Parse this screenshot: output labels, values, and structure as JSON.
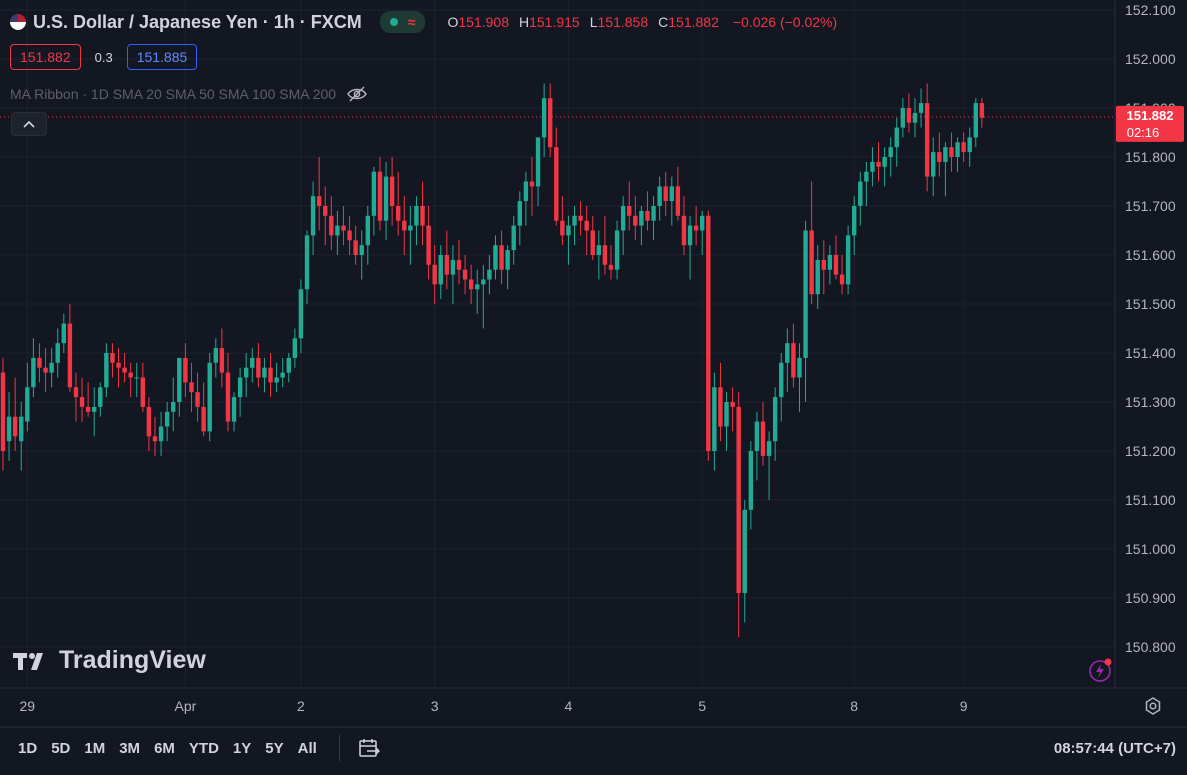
{
  "header": {
    "symbol": "U.S. Dollar / Japanese Yen",
    "separator1": "·",
    "interval": "1h",
    "separator2": "·",
    "exchange": "FXCM",
    "ohlc": {
      "o_label": "O",
      "o_value": "151.908",
      "h_label": "H",
      "h_value": "151.915",
      "l_label": "L",
      "l_value": "151.858",
      "c_label": "C",
      "c_value": "151.882",
      "change": "−0.026 (−0.02%)"
    },
    "bid_price": "151.882",
    "spread": "0.3",
    "ask_price": "151.885",
    "indicator": "MA Ribbon · 1D SMA 20 SMA 50 SMA 100 SMA 200",
    "status_icon": "wave-icon"
  },
  "price_label": {
    "value": "151.882",
    "countdown": "02:16"
  },
  "branding": {
    "name": "TradingView"
  },
  "bottom": {
    "ranges": [
      "1D",
      "5D",
      "1M",
      "3M",
      "6M",
      "YTD",
      "1Y",
      "5Y",
      "All"
    ],
    "clock": "08:57:44 (UTC+7)"
  },
  "colors": {
    "background": "#131722",
    "up": "#22ab94",
    "down": "#f23645",
    "grid": "#1e222d",
    "axis_text": "#b2b5be"
  },
  "chart_data": {
    "type": "candlestick",
    "title": "U.S. Dollar / Japanese Yen · 1h · FXCM",
    "yticks": [
      "152.100",
      "152.000",
      "151.900",
      "151.800",
      "151.700",
      "151.600",
      "151.500",
      "151.400",
      "151.300",
      "151.200",
      "151.100",
      "151.000",
      "150.900",
      "150.800"
    ],
    "ytick_values": [
      152.1,
      152.0,
      151.9,
      151.8,
      151.7,
      151.6,
      151.5,
      151.4,
      151.3,
      151.2,
      151.1,
      151.0,
      150.9,
      150.8
    ],
    "ylim": [
      150.77,
      152.14
    ],
    "xticks": [
      {
        "label": "29",
        "bar": 4
      },
      {
        "label": "Apr",
        "bar": 30
      },
      {
        "label": "2",
        "bar": 49
      },
      {
        "label": "3",
        "bar": 71
      },
      {
        "label": "4",
        "bar": 93
      },
      {
        "label": "5",
        "bar": 115
      },
      {
        "label": "8",
        "bar": 140
      },
      {
        "label": "9",
        "bar": 158
      }
    ],
    "current_price": 151.882,
    "candles": [
      [
        151.36,
        151.39,
        151.16,
        151.2
      ],
      [
        151.22,
        151.32,
        151.18,
        151.27
      ],
      [
        151.27,
        151.35,
        151.2,
        151.23
      ],
      [
        151.22,
        151.3,
        151.16,
        151.27
      ],
      [
        151.26,
        151.38,
        151.24,
        151.33
      ],
      [
        151.33,
        151.43,
        151.31,
        151.39
      ],
      [
        151.39,
        151.42,
        151.34,
        151.37
      ],
      [
        151.37,
        151.41,
        151.32,
        151.36
      ],
      [
        151.36,
        151.41,
        151.33,
        151.38
      ],
      [
        151.38,
        151.45,
        151.35,
        151.42
      ],
      [
        151.42,
        151.48,
        151.4,
        151.46
      ],
      [
        151.46,
        151.5,
        151.32,
        151.33
      ],
      [
        151.33,
        151.36,
        151.26,
        151.31
      ],
      [
        151.31,
        151.35,
        151.26,
        151.29
      ],
      [
        151.29,
        151.34,
        151.27,
        151.28
      ],
      [
        151.28,
        151.33,
        151.23,
        151.29
      ],
      [
        151.29,
        151.34,
        151.27,
        151.33
      ],
      [
        151.33,
        151.42,
        151.31,
        151.4
      ],
      [
        151.4,
        151.42,
        151.35,
        151.38
      ],
      [
        151.38,
        151.41,
        151.33,
        151.37
      ],
      [
        151.37,
        151.4,
        151.34,
        151.36
      ],
      [
        151.36,
        151.38,
        151.31,
        151.35
      ],
      [
        151.35,
        151.38,
        151.31,
        151.35
      ],
      [
        151.35,
        151.38,
        151.28,
        151.29
      ],
      [
        151.29,
        151.31,
        151.2,
        151.23
      ],
      [
        151.23,
        151.27,
        151.19,
        151.22
      ],
      [
        151.22,
        151.28,
        151.19,
        151.25
      ],
      [
        151.25,
        151.3,
        151.22,
        151.28
      ],
      [
        151.28,
        151.35,
        151.24,
        151.3
      ],
      [
        151.3,
        151.39,
        151.27,
        151.39
      ],
      [
        151.39,
        151.42,
        151.31,
        151.34
      ],
      [
        151.34,
        151.38,
        151.28,
        151.32
      ],
      [
        151.32,
        151.36,
        151.26,
        151.29
      ],
      [
        151.29,
        151.34,
        151.23,
        151.24
      ],
      [
        151.24,
        151.4,
        151.22,
        151.38
      ],
      [
        151.38,
        151.43,
        151.35,
        151.41
      ],
      [
        151.41,
        151.45,
        151.33,
        151.36
      ],
      [
        151.36,
        151.4,
        151.24,
        151.26
      ],
      [
        151.26,
        151.32,
        151.24,
        151.31
      ],
      [
        151.31,
        151.37,
        151.27,
        151.35
      ],
      [
        151.35,
        151.4,
        151.31,
        151.37
      ],
      [
        151.37,
        151.41,
        151.34,
        151.39
      ],
      [
        151.39,
        151.42,
        151.33,
        151.35
      ],
      [
        151.35,
        151.39,
        151.32,
        151.37
      ],
      [
        151.37,
        151.4,
        151.31,
        151.34
      ],
      [
        151.34,
        151.38,
        151.32,
        151.35
      ],
      [
        151.35,
        151.39,
        151.33,
        151.36
      ],
      [
        151.36,
        151.4,
        151.34,
        151.39
      ],
      [
        151.39,
        151.45,
        151.37,
        151.43
      ],
      [
        151.43,
        151.55,
        151.4,
        151.53
      ],
      [
        151.53,
        151.65,
        151.5,
        151.64
      ],
      [
        151.64,
        151.75,
        151.6,
        151.72
      ],
      [
        151.72,
        151.8,
        151.65,
        151.7
      ],
      [
        151.7,
        151.74,
        151.62,
        151.68
      ],
      [
        151.68,
        151.72,
        151.61,
        151.64
      ],
      [
        151.64,
        151.69,
        151.6,
        151.66
      ],
      [
        151.66,
        151.7,
        151.62,
        151.65
      ],
      [
        151.65,
        151.68,
        151.6,
        151.63
      ],
      [
        151.63,
        151.66,
        151.58,
        151.6
      ],
      [
        151.6,
        151.65,
        151.55,
        151.62
      ],
      [
        151.62,
        151.7,
        151.58,
        151.68
      ],
      [
        151.68,
        151.78,
        151.64,
        151.77
      ],
      [
        151.77,
        151.8,
        151.65,
        151.67
      ],
      [
        151.67,
        151.79,
        151.63,
        151.76
      ],
      [
        151.76,
        151.8,
        151.66,
        151.7
      ],
      [
        151.7,
        151.77,
        151.64,
        151.67
      ],
      [
        151.67,
        151.72,
        151.6,
        151.65
      ],
      [
        151.65,
        151.7,
        151.58,
        151.66
      ],
      [
        151.66,
        151.72,
        151.62,
        151.7
      ],
      [
        151.7,
        151.75,
        151.62,
        151.66
      ],
      [
        151.66,
        151.7,
        151.55,
        151.58
      ],
      [
        151.58,
        151.62,
        151.5,
        151.54
      ],
      [
        151.54,
        151.62,
        151.51,
        151.6
      ],
      [
        151.6,
        151.65,
        151.53,
        151.56
      ],
      [
        151.56,
        151.62,
        151.5,
        151.59
      ],
      [
        151.59,
        151.63,
        151.54,
        151.57
      ],
      [
        151.57,
        151.6,
        151.52,
        151.55
      ],
      [
        151.55,
        151.58,
        151.5,
        151.53
      ],
      [
        151.53,
        151.57,
        151.48,
        151.54
      ],
      [
        151.54,
        151.58,
        151.45,
        151.55
      ],
      [
        151.55,
        151.6,
        151.52,
        151.57
      ],
      [
        151.57,
        151.64,
        151.55,
        151.62
      ],
      [
        151.62,
        151.65,
        151.54,
        151.57
      ],
      [
        151.57,
        151.62,
        151.53,
        151.61
      ],
      [
        151.61,
        151.68,
        151.58,
        151.66
      ],
      [
        151.66,
        151.73,
        151.62,
        151.71
      ],
      [
        151.71,
        151.77,
        151.66,
        151.75
      ],
      [
        151.75,
        151.8,
        151.68,
        151.74
      ],
      [
        151.74,
        151.84,
        151.7,
        151.84
      ],
      [
        151.84,
        151.95,
        151.8,
        151.92
      ],
      [
        151.92,
        151.95,
        151.8,
        151.82
      ],
      [
        151.82,
        151.86,
        151.66,
        151.67
      ],
      [
        151.67,
        151.72,
        151.62,
        151.64
      ],
      [
        151.64,
        151.68,
        151.58,
        151.66
      ],
      [
        151.66,
        151.7,
        151.62,
        151.68
      ],
      [
        151.68,
        151.71,
        151.64,
        151.67
      ],
      [
        151.67,
        151.7,
        151.6,
        151.65
      ],
      [
        151.65,
        151.68,
        151.59,
        151.6
      ],
      [
        151.6,
        151.65,
        151.55,
        151.62
      ],
      [
        151.62,
        151.68,
        151.56,
        151.58
      ],
      [
        151.58,
        151.62,
        151.55,
        151.57
      ],
      [
        151.57,
        151.67,
        151.55,
        151.65
      ],
      [
        151.65,
        151.72,
        151.6,
        151.7
      ],
      [
        151.7,
        151.75,
        151.65,
        151.68
      ],
      [
        151.68,
        151.72,
        151.63,
        151.66
      ],
      [
        151.66,
        151.7,
        151.62,
        151.69
      ],
      [
        151.69,
        151.73,
        151.65,
        151.67
      ],
      [
        151.67,
        151.72,
        151.63,
        151.7
      ],
      [
        151.7,
        151.76,
        151.67,
        151.74
      ],
      [
        151.74,
        151.77,
        151.68,
        151.71
      ],
      [
        151.71,
        151.76,
        151.66,
        151.74
      ],
      [
        151.74,
        151.78,
        151.67,
        151.68
      ],
      [
        151.68,
        151.72,
        151.6,
        151.62
      ],
      [
        151.62,
        151.68,
        151.55,
        151.66
      ],
      [
        151.66,
        151.7,
        151.62,
        151.65
      ],
      [
        151.65,
        151.69,
        151.6,
        151.68
      ],
      [
        151.68,
        151.69,
        151.18,
        151.2
      ],
      [
        151.2,
        151.36,
        151.16,
        151.33
      ],
      [
        151.33,
        151.38,
        151.22,
        151.25
      ],
      [
        151.25,
        151.32,
        151.2,
        151.3
      ],
      [
        151.3,
        151.33,
        151.24,
        151.29
      ],
      [
        151.29,
        151.32,
        150.82,
        150.91
      ],
      [
        150.91,
        151.1,
        150.85,
        151.08
      ],
      [
        151.08,
        151.22,
        151.04,
        151.2
      ],
      [
        151.2,
        151.28,
        151.14,
        151.26
      ],
      [
        151.26,
        151.3,
        151.17,
        151.19
      ],
      [
        151.19,
        151.24,
        151.1,
        151.22
      ],
      [
        151.22,
        151.33,
        151.18,
        151.31
      ],
      [
        151.31,
        151.4,
        151.26,
        151.38
      ],
      [
        151.38,
        151.45,
        151.32,
        151.42
      ],
      [
        151.42,
        151.46,
        151.33,
        151.35
      ],
      [
        151.35,
        151.42,
        151.28,
        151.39
      ],
      [
        151.39,
        151.67,
        151.3,
        151.65
      ],
      [
        151.65,
        151.75,
        151.5,
        151.52
      ],
      [
        151.52,
        151.62,
        151.49,
        151.59
      ],
      [
        151.59,
        151.63,
        151.52,
        151.57
      ],
      [
        151.57,
        151.62,
        151.54,
        151.6
      ],
      [
        151.6,
        151.64,
        151.55,
        151.56
      ],
      [
        151.56,
        151.6,
        151.52,
        151.54
      ],
      [
        151.54,
        151.66,
        151.52,
        151.64
      ],
      [
        151.64,
        151.72,
        151.6,
        151.7
      ],
      [
        151.7,
        151.77,
        151.66,
        151.75
      ],
      [
        151.75,
        151.79,
        151.7,
        151.77
      ],
      [
        151.77,
        151.82,
        151.74,
        151.79
      ],
      [
        151.79,
        151.83,
        151.75,
        151.78
      ],
      [
        151.78,
        151.82,
        151.74,
        151.8
      ],
      [
        151.8,
        151.84,
        151.76,
        151.82
      ],
      [
        151.82,
        151.88,
        151.78,
        151.86
      ],
      [
        151.86,
        151.92,
        151.84,
        151.9
      ],
      [
        151.9,
        151.93,
        151.85,
        151.87
      ],
      [
        151.87,
        151.92,
        151.84,
        151.89
      ],
      [
        151.89,
        151.94,
        151.86,
        151.91
      ],
      [
        151.91,
        151.95,
        151.73,
        151.76
      ],
      [
        151.76,
        151.84,
        151.72,
        151.81
      ],
      [
        151.81,
        151.85,
        151.76,
        151.79
      ],
      [
        151.79,
        151.83,
        151.72,
        151.82
      ],
      [
        151.82,
        151.85,
        151.77,
        151.8
      ],
      [
        151.8,
        151.84,
        151.77,
        151.83
      ],
      [
        151.83,
        151.85,
        151.79,
        151.81
      ],
      [
        151.81,
        151.86,
        151.78,
        151.84
      ],
      [
        151.84,
        151.92,
        151.82,
        151.91
      ],
      [
        151.91,
        151.92,
        151.86,
        151.88
      ]
    ]
  }
}
